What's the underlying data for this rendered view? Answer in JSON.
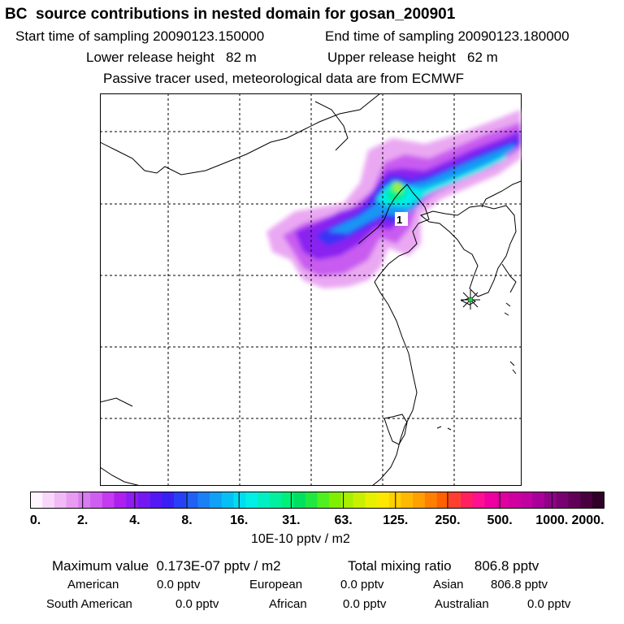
{
  "header": {
    "title": "BC  source contributions in nested domain for gosan_200901",
    "start_time": "Start time of sampling 20090123.150000",
    "end_time": "End time of sampling 20090123.180000",
    "lower_release": "Lower release height   82 m",
    "upper_release": "Upper release height   62 m",
    "tracer_info": "Passive tracer used, meteorological data are from ECMWF"
  },
  "map": {
    "station_marker_label": "1",
    "receptor_symbol": "star"
  },
  "colorbar": {
    "tick_labels": [
      "0.",
      "2.",
      "4.",
      "8.",
      "16.",
      "31.",
      "63.",
      "125.",
      "250.",
      "500.",
      "1000.",
      "2000."
    ],
    "colors": [
      "#fff5fe",
      "#f8d7fa",
      "#f1b9f6",
      "#e99bf2",
      "#d77df0",
      "#cf5ff0",
      "#c43bf0",
      "#ad20f0",
      "#8f1cf0",
      "#7418f2",
      "#5418f5",
      "#3820f5",
      "#2840f5",
      "#2060f5",
      "#1a80f5",
      "#10a0f5",
      "#06c0f5",
      "#00dcf0",
      "#00f0e8",
      "#00f0c4",
      "#00f0a0",
      "#00f07c",
      "#00e060",
      "#20e840",
      "#50f020",
      "#80f000",
      "#a8f000",
      "#c8f000",
      "#e8f000",
      "#ffe800",
      "#ffd000",
      "#ffb800",
      "#ffa000",
      "#ff8000",
      "#ff6000",
      "#ff4030",
      "#ff2060",
      "#ff1090",
      "#f000a0",
      "#e000a0",
      "#d000a0",
      "#c000a0",
      "#a80098",
      "#900088",
      "#780070",
      "#600058",
      "#480040",
      "#300028"
    ],
    "unit": "10E-10 pptv / m2"
  },
  "summary": {
    "max_value": "Maximum value  0.173E-07 pptv / m2",
    "total_mixing": "Total mixing ratio      806.8 pptv",
    "rows": [
      [
        {
          "name": "American",
          "value": "0.0 pptv"
        },
        {
          "name": "European",
          "value": "0.0 pptv"
        },
        {
          "name": "Asian",
          "value": "806.8 pptv"
        }
      ],
      [
        {
          "name": "South American",
          "value": "0.0 pptv"
        },
        {
          "name": "African",
          "value": "0.0 pptv"
        },
        {
          "name": "Australian",
          "value": "0.0 pptv"
        }
      ]
    ]
  }
}
